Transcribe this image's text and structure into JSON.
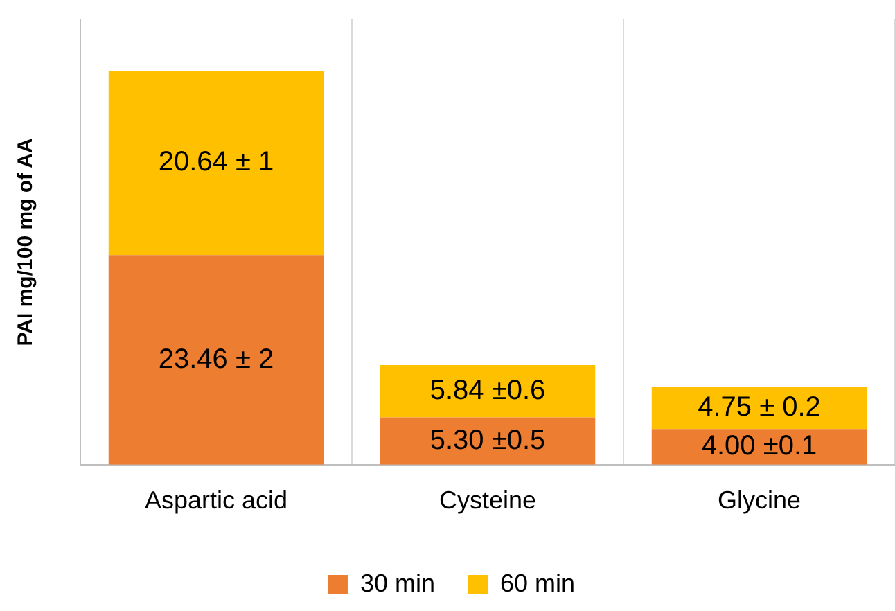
{
  "chart_data": {
    "type": "bar",
    "stacked": true,
    "ylabel": "PAI mg/100 mg of AA",
    "categories": [
      "Aspartic acid",
      "Cysteine",
      "Glycine"
    ],
    "series": [
      {
        "name": "30 min",
        "color": "#ed7d31",
        "values": [
          23.46,
          5.3,
          4.0
        ],
        "value_labels": [
          "23.46 ± 2",
          "5.30 ±0.5",
          "4.00 ±0.1"
        ]
      },
      {
        "name": "60 min",
        "color": "#ffc000",
        "values": [
          20.64,
          5.84,
          4.75
        ],
        "value_labels": [
          "20.64 ± 1",
          "5.84 ±0.6",
          "4.75 ± 0.2"
        ]
      }
    ],
    "grid": "x",
    "legend": "bottom"
  }
}
